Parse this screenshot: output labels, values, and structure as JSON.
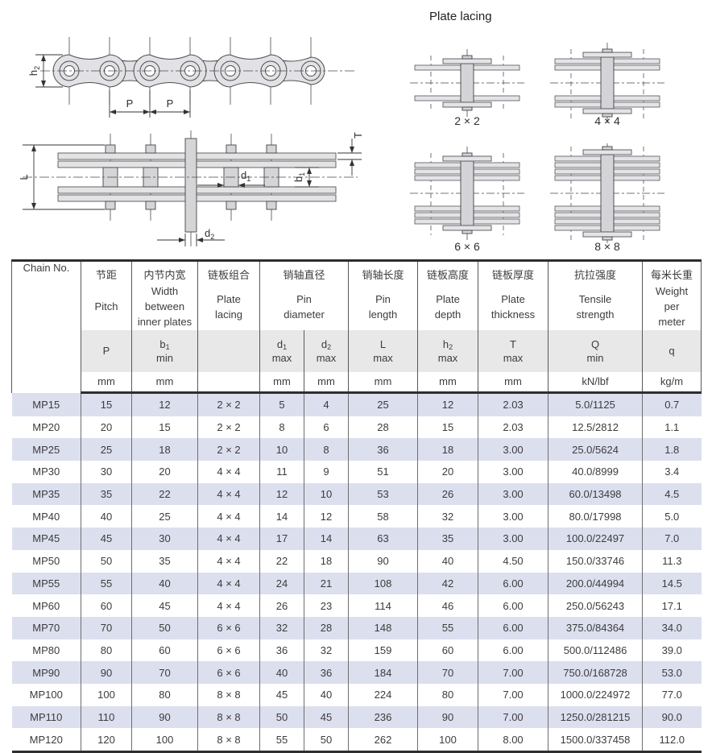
{
  "diagrams": {
    "lacing_title": "Plate lacing",
    "side_view": {
      "labels": {
        "height_sym": "h",
        "height_sub": "2",
        "pitch1": "P",
        "pitch2": "P"
      }
    },
    "plan_view": {
      "labels": {
        "length": "L",
        "thickness": "T",
        "d1_sym": "d",
        "d1_sub": "1",
        "d2_sym": "d",
        "d2_sub": "2",
        "b1_sym": "b",
        "b1_sub": "1"
      }
    },
    "lacing": {
      "items": [
        {
          "label": "2 × 2",
          "plates_per_side": 1
        },
        {
          "label": "4 × 4",
          "plates_per_side": 2
        },
        {
          "label": "6 × 6",
          "plates_per_side": 3
        },
        {
          "label": "8 × 8",
          "plates_per_side": 4
        }
      ]
    }
  },
  "table": {
    "chain_no_header": "Chain No.",
    "groups": [
      {
        "cn": "节距",
        "en": "Pitch",
        "cols": [
          {
            "sym": "P",
            "sub": "",
            "qual": "",
            "unit": "mm"
          }
        ]
      },
      {
        "cn": "内节内宽",
        "en": "Width\nbetween\ninner plates",
        "cols": [
          {
            "sym": "b",
            "sub": "1",
            "qual": "min",
            "unit": "mm"
          }
        ]
      },
      {
        "cn": "链板组合",
        "en": "Plate\nlacing",
        "cols": [
          {
            "sym": "",
            "sub": "",
            "qual": "",
            "unit": ""
          }
        ]
      },
      {
        "cn": "销轴直径",
        "en": "Pin\ndiameter",
        "cols": [
          {
            "sym": "d",
            "sub": "1",
            "qual": "max",
            "unit": "mm"
          },
          {
            "sym": "d",
            "sub": "2",
            "qual": "max",
            "unit": "mm"
          }
        ]
      },
      {
        "cn": "销轴长度",
        "en": "Pin\nlength",
        "cols": [
          {
            "sym": "L",
            "sub": "",
            "qual": "max",
            "unit": "mm"
          }
        ]
      },
      {
        "cn": "链板高度",
        "en": "Plate\ndepth",
        "cols": [
          {
            "sym": "h",
            "sub": "2",
            "qual": "max",
            "unit": "mm"
          }
        ]
      },
      {
        "cn": "链板厚度",
        "en": "Plate\nthickness",
        "cols": [
          {
            "sym": "T",
            "sub": "",
            "qual": "max",
            "unit": "mm"
          }
        ]
      },
      {
        "cn": "抗拉强度",
        "en": "Tensile\nstrength",
        "cols": [
          {
            "sym": "Q",
            "sub": "",
            "qual": "min",
            "unit": "kN/lbf"
          }
        ]
      },
      {
        "cn": "每米长重",
        "en": "Weight\nper\nmeter",
        "cols": [
          {
            "sym": "q",
            "sub": "",
            "qual": "",
            "unit": "kg/m"
          }
        ]
      }
    ],
    "rows": [
      [
        "MP15",
        "15",
        "12",
        "2 × 2",
        "5",
        "4",
        "25",
        "12",
        "2.03",
        "5.0/1125",
        "0.7"
      ],
      [
        "MP20",
        "20",
        "15",
        "2 × 2",
        "8",
        "6",
        "28",
        "15",
        "2.03",
        "12.5/2812",
        "1.1"
      ],
      [
        "MP25",
        "25",
        "18",
        "2 × 2",
        "10",
        "8",
        "36",
        "18",
        "3.00",
        "25.0/5624",
        "1.8"
      ],
      [
        "MP30",
        "30",
        "20",
        "4 × 4",
        "11",
        "9",
        "51",
        "20",
        "3.00",
        "40.0/8999",
        "3.4"
      ],
      [
        "MP35",
        "35",
        "22",
        "4 × 4",
        "12",
        "10",
        "53",
        "26",
        "3.00",
        "60.0/13498",
        "4.5"
      ],
      [
        "MP40",
        "40",
        "25",
        "4 × 4",
        "14",
        "12",
        "58",
        "32",
        "3.00",
        "80.0/17998",
        "5.0"
      ],
      [
        "MP45",
        "45",
        "30",
        "4 × 4",
        "17",
        "14",
        "63",
        "35",
        "3.00",
        "100.0/22497",
        "7.0"
      ],
      [
        "MP50",
        "50",
        "35",
        "4 × 4",
        "22",
        "18",
        "90",
        "40",
        "4.50",
        "150.0/33746",
        "11.3"
      ],
      [
        "MP55",
        "55",
        "40",
        "4 × 4",
        "24",
        "21",
        "108",
        "42",
        "6.00",
        "200.0/44994",
        "14.5"
      ],
      [
        "MP60",
        "60",
        "45",
        "4 × 4",
        "26",
        "23",
        "114",
        "46",
        "6.00",
        "250.0/56243",
        "17.1"
      ],
      [
        "MP70",
        "70",
        "50",
        "6 × 6",
        "32",
        "28",
        "148",
        "55",
        "6.00",
        "375.0/84364",
        "34.0"
      ],
      [
        "MP80",
        "80",
        "60",
        "6 × 6",
        "36",
        "32",
        "159",
        "60",
        "6.00",
        "500.0/112486",
        "39.0"
      ],
      [
        "MP90",
        "90",
        "70",
        "6 × 6",
        "40",
        "36",
        "184",
        "70",
        "7.00",
        "750.0/168728",
        "53.0"
      ],
      [
        "MP100",
        "100",
        "80",
        "8 × 8",
        "45",
        "40",
        "224",
        "80",
        "7.00",
        "1000.0/224972",
        "77.0"
      ],
      [
        "MP110",
        "110",
        "90",
        "8 × 8",
        "50",
        "45",
        "236",
        "90",
        "7.00",
        "1250.0/281215",
        "90.0"
      ],
      [
        "MP120",
        "120",
        "100",
        "8 × 8",
        "55",
        "50",
        "262",
        "100",
        "8.00",
        "1500.0/337458",
        "112.0"
      ]
    ]
  }
}
